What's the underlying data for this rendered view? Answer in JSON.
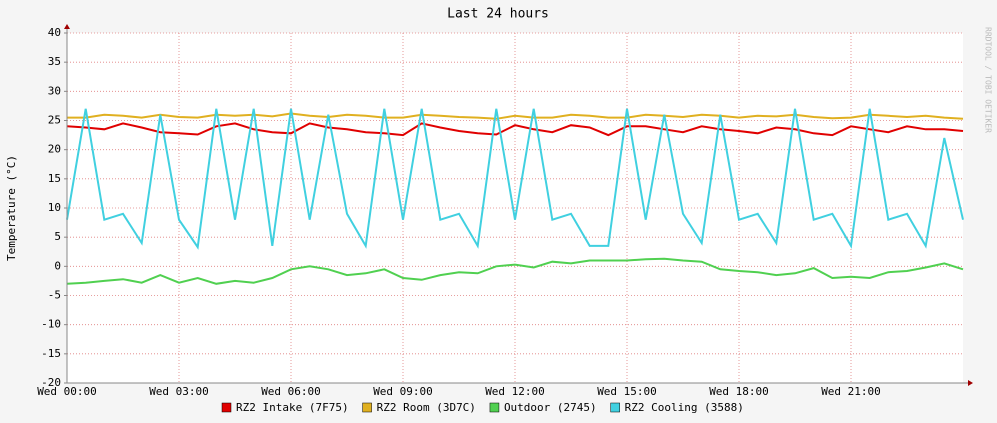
{
  "chart_data": {
    "type": "line",
    "title": "Last 24 hours",
    "y_label": "Temperature (°C)",
    "watermark": "RRDTOOL / TOBI OETIKER",
    "x": [
      0,
      0.5,
      1,
      1.5,
      2,
      2.5,
      3,
      3.5,
      4,
      4.5,
      5,
      5.5,
      6,
      6.5,
      7,
      7.5,
      8,
      8.5,
      9,
      9.5,
      10,
      10.5,
      11,
      11.5,
      12,
      12.5,
      13,
      13.5,
      14,
      14.5,
      15,
      15.5,
      16,
      16.5,
      17,
      17.5,
      18,
      18.5,
      19,
      19.5,
      20,
      20.5,
      21,
      21.5,
      22,
      22.5,
      23,
      23.5,
      24
    ],
    "xlim": [
      0,
      24
    ],
    "xticks": [
      {
        "value": 0,
        "label": "Wed 00:00"
      },
      {
        "value": 3,
        "label": "Wed 03:00"
      },
      {
        "value": 6,
        "label": "Wed 06:00"
      },
      {
        "value": 9,
        "label": "Wed 09:00"
      },
      {
        "value": 12,
        "label": "Wed 12:00"
      },
      {
        "value": 15,
        "label": "Wed 15:00"
      },
      {
        "value": 18,
        "label": "Wed 18:00"
      },
      {
        "value": 21,
        "label": "Wed 21:00"
      }
    ],
    "ylim": [
      -20,
      40
    ],
    "yticks": [
      -20,
      -15,
      -10,
      -5,
      0,
      5,
      10,
      15,
      20,
      25,
      30,
      35,
      40
    ],
    "grid": true,
    "series": [
      {
        "name": "RZ2 Intake (7F75)",
        "color": "#e00000",
        "values": [
          24,
          23.8,
          23.5,
          24.5,
          23.8,
          23,
          22.8,
          22.6,
          24,
          24.5,
          23.5,
          23,
          22.8,
          24.5,
          23.8,
          23.5,
          23,
          22.8,
          22.5,
          24.5,
          23.8,
          23.2,
          22.8,
          22.6,
          24.2,
          23.5,
          23,
          24.2,
          23.8,
          22.5,
          24,
          24,
          23.5,
          23,
          24,
          23.5,
          23.2,
          22.8,
          23.8,
          23.5,
          22.8,
          22.5,
          24,
          23.5,
          23,
          24,
          23.5,
          23.5,
          23.2
        ]
      },
      {
        "name": "RZ2 Room (3D7C)",
        "color": "#e0b020",
        "values": [
          25.5,
          25.5,
          26,
          25.8,
          25.5,
          26,
          25.6,
          25.5,
          26,
          25.8,
          26,
          25.7,
          26.2,
          25.8,
          25.6,
          26,
          25.8,
          25.5,
          25.5,
          26,
          25.8,
          25.6,
          25.5,
          25.3,
          25.8,
          25.5,
          25.5,
          26,
          25.8,
          25.5,
          25.5,
          26,
          25.8,
          25.6,
          26,
          25.8,
          25.5,
          25.8,
          25.7,
          26,
          25.6,
          25.4,
          25.5,
          26,
          25.8,
          25.6,
          25.8,
          25.5,
          25.3
        ]
      },
      {
        "name": "Outdoor (2745)",
        "color": "#50d050",
        "values": [
          -3,
          -2.8,
          -2.5,
          -2.2,
          -2.8,
          -1.5,
          -2.8,
          -2,
          -3,
          -2.5,
          -2.8,
          -2,
          -0.5,
          0,
          -0.5,
          -1.5,
          -1.2,
          -0.5,
          -2,
          -2.3,
          -1.5,
          -1,
          -1.2,
          0,
          0.3,
          -0.2,
          0.8,
          0.5,
          1,
          1,
          1,
          1.2,
          1.3,
          1,
          0.8,
          -0.5,
          -0.8,
          -1,
          -1.5,
          -1.2,
          -0.3,
          -2,
          -1.8,
          -2,
          -1,
          -0.8,
          -0.2,
          0.5,
          -0.5
        ]
      },
      {
        "name": "RZ2 Cooling (3588)",
        "color": "#40d0e0",
        "values": [
          8,
          27,
          8,
          9,
          4,
          26,
          8,
          3.3,
          27,
          8,
          27,
          3.5,
          27,
          8,
          26,
          9,
          3.5,
          27,
          8,
          27,
          8,
          9,
          3.5,
          27,
          8,
          27,
          8,
          9,
          3.5,
          3.5,
          27,
          8,
          26,
          9,
          4,
          26,
          8,
          9,
          4,
          27,
          8,
          9,
          3.5,
          27,
          8,
          9,
          3.5,
          22,
          8
        ]
      }
    ]
  }
}
